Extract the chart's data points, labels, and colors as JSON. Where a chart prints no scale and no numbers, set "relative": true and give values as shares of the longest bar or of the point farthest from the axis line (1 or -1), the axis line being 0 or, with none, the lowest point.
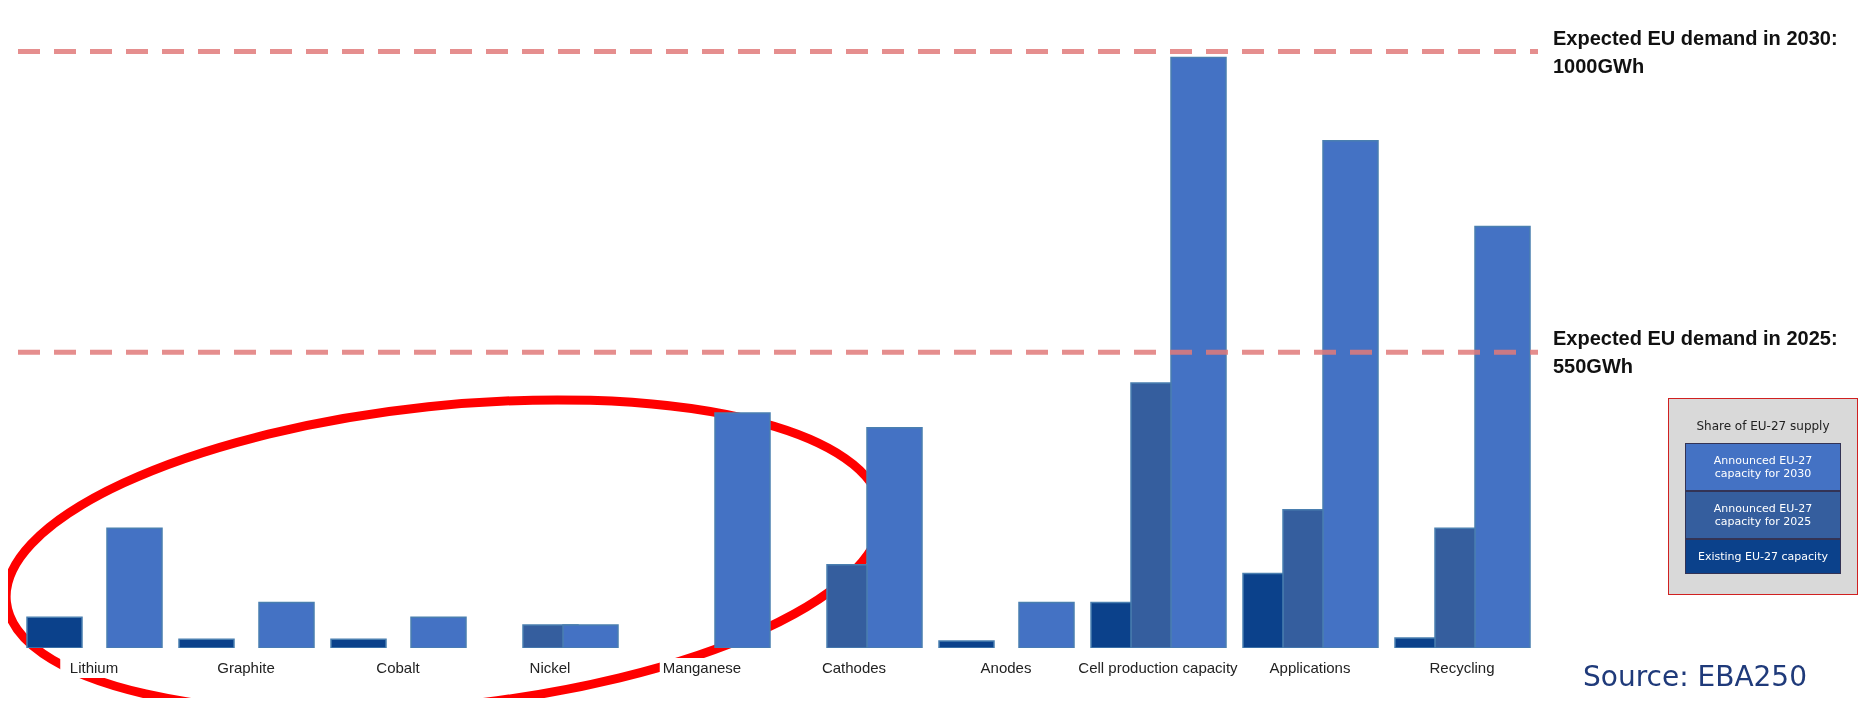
{
  "chart_data": {
    "type": "bar",
    "relative": true,
    "categories": [
      "Lithium",
      "Graphite",
      "Cobalt",
      "Nickel",
      "Manganese",
      "Cathodes",
      "Anodes",
      "Cell production  capacity",
      "Applications",
      "Recycling"
    ],
    "series": [
      {
        "name": "Existing EU-27 capacity",
        "color": "#0b418b",
        "values": [
          0.052,
          0.015,
          0.015,
          null,
          null,
          null,
          0.012,
          0.077,
          0.126,
          0.017
        ]
      },
      {
        "name": "Announced EU-27 capacity for 2025",
        "color": "#355e9e",
        "values": [
          null,
          null,
          null,
          0.039,
          null,
          0.141,
          null,
          0.449,
          0.234,
          0.203
        ]
      },
      {
        "name": "Announced EU-27 capacity for 2030",
        "color": "#4472c4",
        "values": [
          0.203,
          0.077,
          0.052,
          0.039,
          0.398,
          0.373,
          0.077,
          1,
          0.859,
          0.714
        ]
      }
    ],
    "ref_lines": [
      {
        "axis": "y",
        "value": 1.01,
        "color": "#e07a7a",
        "line_style": "dashed"
      },
      {
        "axis": "y",
        "value": 0.501,
        "color": "#e07a7a",
        "line_style": "dashed"
      }
    ],
    "legend_title": "Share of EU-27 supply",
    "legend": "right",
    "annotations": [
      "Expected EU demand in 2030: 1000GWh",
      "Expected EU demand in 2025: 550GWh",
      "Source: EBA250"
    ]
  }
}
